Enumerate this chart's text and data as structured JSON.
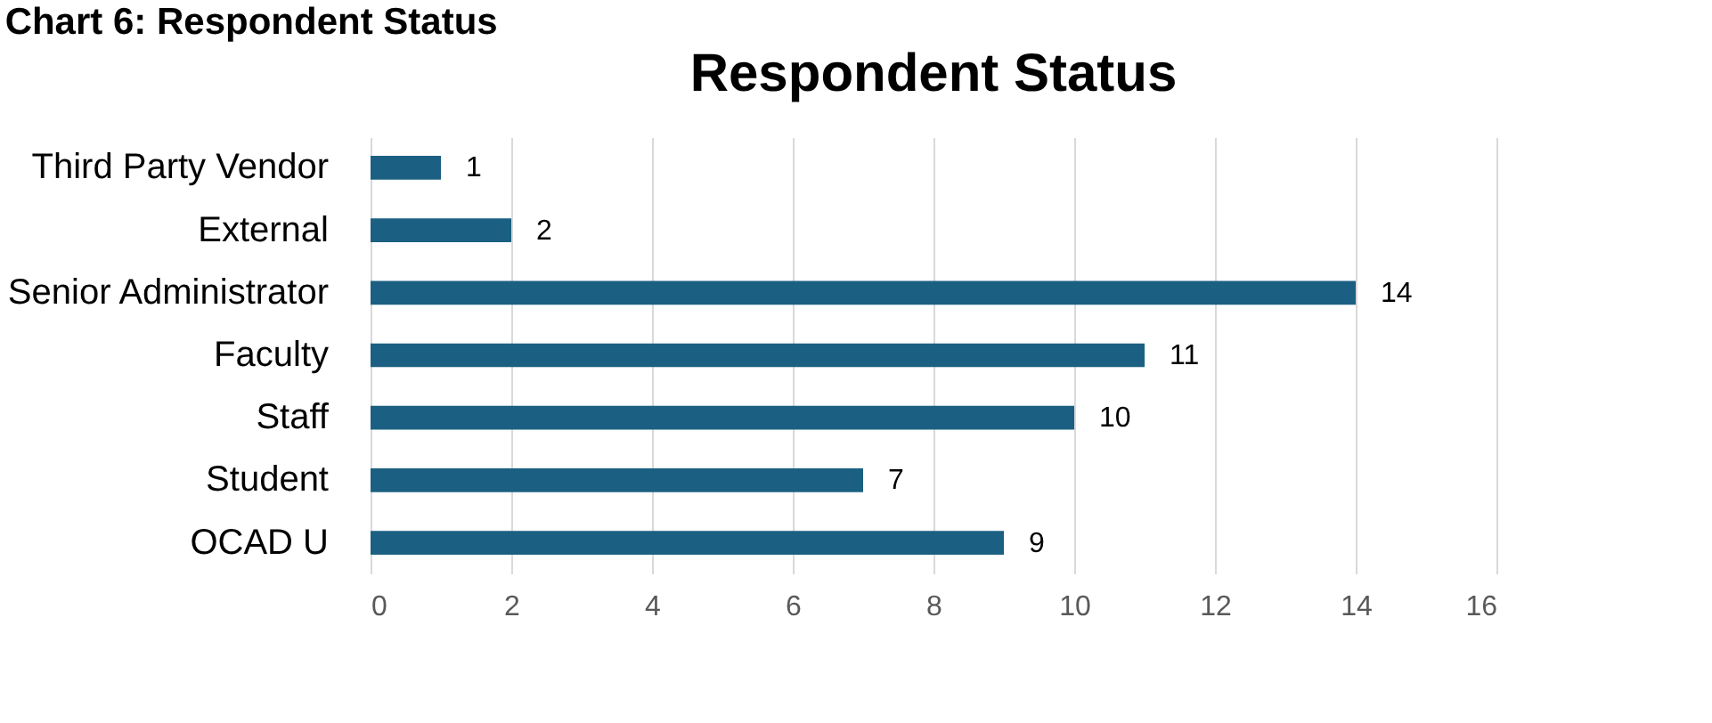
{
  "chart_data": {
    "type": "bar",
    "orientation": "horizontal",
    "title": "Respondent Status",
    "annotations": [
      "Chart 6: Respondent Status"
    ],
    "categories": [
      "Third Party Vendor",
      "External",
      "Senior Administrator",
      "Faculty",
      "Staff",
      "Student",
      "OCAD U"
    ],
    "values": [
      1,
      2,
      14,
      11,
      10,
      7,
      9
    ],
    "color": "#1b6082",
    "xlim": [
      0,
      16
    ],
    "xticks": [
      0,
      2,
      4,
      6,
      8,
      10,
      12,
      14,
      16
    ],
    "grid": "x",
    "data_labels": true,
    "legend": false
  }
}
